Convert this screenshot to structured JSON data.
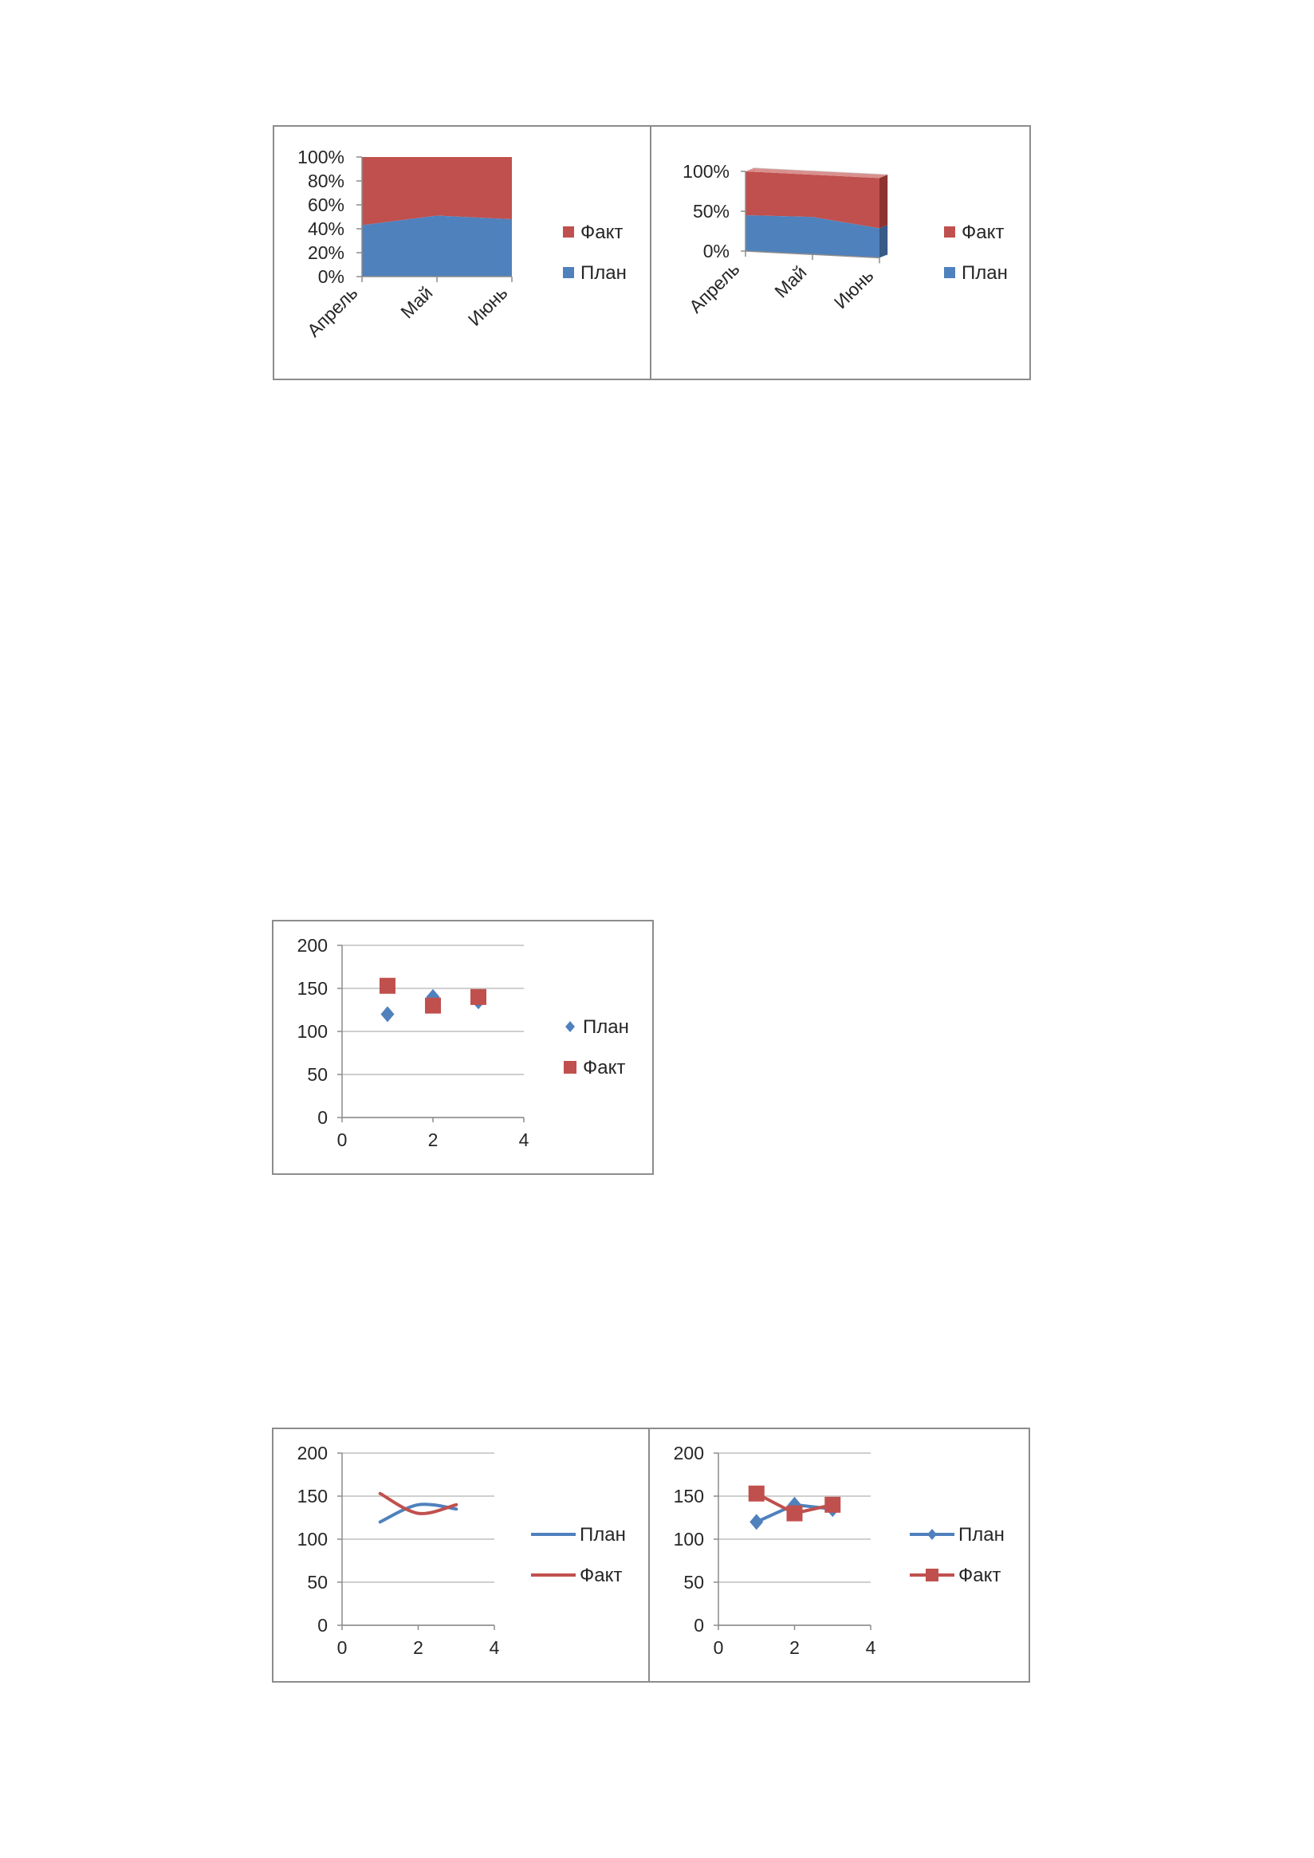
{
  "colors": {
    "plan": "#4f81bd",
    "fact": "#c0504d",
    "grid": "#bfbfbf",
    "axis": "#8c8c8c",
    "border": "#8c8c8c"
  },
  "chart_data": [
    {
      "id": "area100",
      "type": "area",
      "stacked": "percent",
      "categories": [
        "Апрель",
        "Май",
        "Июнь"
      ],
      "series": [
        {
          "name": "План",
          "values": [
            43,
            51,
            48
          ]
        },
        {
          "name": "Факт",
          "values": [
            57,
            49,
            52
          ]
        }
      ],
      "ylim": [
        0,
        100
      ],
      "yticks": [
        "0%",
        "20%",
        "40%",
        "60%",
        "80%",
        "100%"
      ],
      "grid": false,
      "legend": "right"
    },
    {
      "id": "area100_3d",
      "type": "area",
      "stacked": "percent",
      "view": "3d",
      "categories": [
        "Апрель",
        "Май",
        "Июнь"
      ],
      "series": [
        {
          "name": "План",
          "values": [
            45,
            47,
            37
          ]
        },
        {
          "name": "Факт",
          "values": [
            55,
            53,
            63
          ]
        }
      ],
      "ylim": [
        0,
        100
      ],
      "yticks": [
        "0%",
        "50%",
        "100%"
      ],
      "grid": false,
      "legend": "right"
    },
    {
      "id": "scatter_markers",
      "type": "scatter",
      "series": [
        {
          "name": "План",
          "x": [
            1,
            2,
            3
          ],
          "y": [
            120,
            140,
            135
          ]
        },
        {
          "name": "Факт",
          "x": [
            1,
            2,
            3
          ],
          "y": [
            153,
            130,
            140
          ]
        }
      ],
      "xlim": [
        0,
        4
      ],
      "ylim": [
        0,
        200
      ],
      "xticks": [
        "0",
        "2",
        "4"
      ],
      "yticks": [
        "0",
        "50",
        "100",
        "150",
        "200"
      ],
      "grid": true,
      "legend": "right"
    },
    {
      "id": "scatter_smooth",
      "type": "scatter",
      "style": "smooth lines",
      "series": [
        {
          "name": "План",
          "x": [
            1,
            2,
            3
          ],
          "y": [
            120,
            140,
            135
          ]
        },
        {
          "name": "Факт",
          "x": [
            1,
            2,
            3
          ],
          "y": [
            153,
            130,
            140
          ]
        }
      ],
      "xlim": [
        0,
        4
      ],
      "ylim": [
        0,
        200
      ],
      "xticks": [
        "0",
        "2",
        "4"
      ],
      "yticks": [
        "0",
        "50",
        "100",
        "150",
        "200"
      ],
      "grid": true,
      "legend": "right"
    },
    {
      "id": "scatter_lines_markers",
      "type": "scatter",
      "style": "straight lines with markers",
      "series": [
        {
          "name": "План",
          "x": [
            1,
            2,
            3
          ],
          "y": [
            120,
            140,
            135
          ]
        },
        {
          "name": "Факт",
          "x": [
            1,
            2,
            3
          ],
          "y": [
            153,
            130,
            140
          ]
        }
      ],
      "xlim": [
        0,
        4
      ],
      "ylim": [
        0,
        200
      ],
      "xticks": [
        "0",
        "2",
        "4"
      ],
      "yticks": [
        "0",
        "50",
        "100",
        "150",
        "200"
      ],
      "grid": true,
      "legend": "right"
    }
  ]
}
